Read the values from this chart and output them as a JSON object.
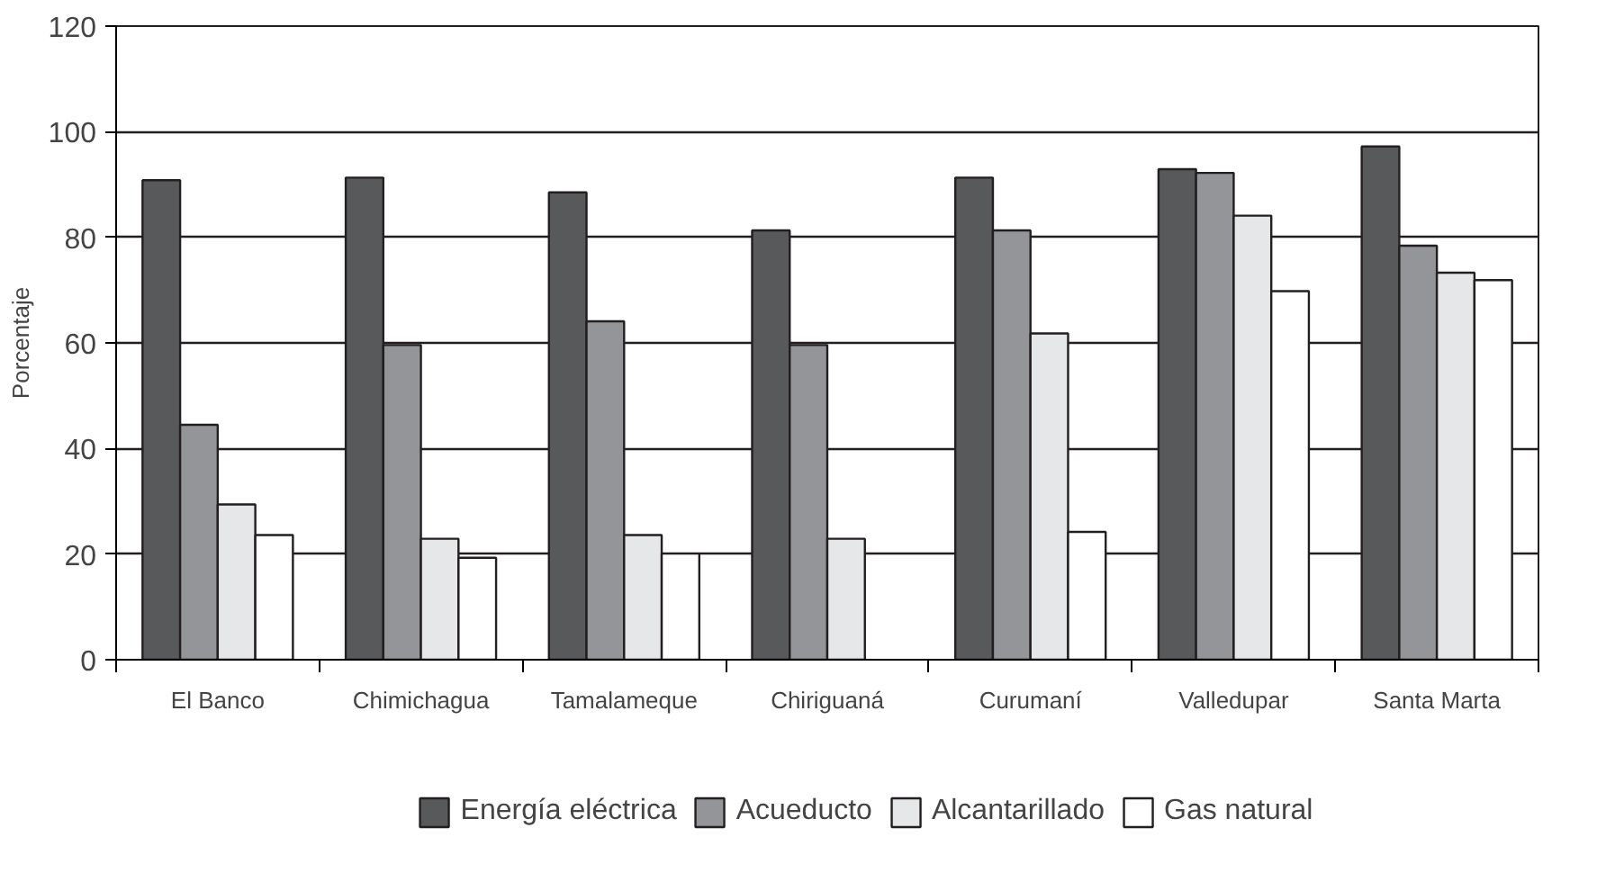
{
  "chart_data": {
    "type": "bar",
    "ylabel": "Porcentaje",
    "categories": [
      "El Banco",
      "Chimichagua",
      "Tamalameque",
      "Chiriguaná",
      "Curumaní",
      "Valledupar",
      "Santa Marta"
    ],
    "series": [
      {
        "name": "Energía eléctrica",
        "color": "#58595b",
        "values": [
          90.8,
          91.3,
          88.5,
          81.3,
          91.3,
          92.9,
          97.2
        ]
      },
      {
        "name": "Acueducto",
        "color": "#939598",
        "values": [
          44.5,
          59.6,
          64.1,
          59.6,
          81.3,
          92.2,
          78.4
        ]
      },
      {
        "name": "Alcantarillado",
        "color": "#e6e7e8",
        "values": [
          29.4,
          22.9,
          23.6,
          22.9,
          61.8,
          84.1,
          73.3
        ]
      },
      {
        "name": "Gas natural",
        "color": "#ffffff",
        "values": [
          23.6,
          19.3,
          20.1,
          null,
          24.2,
          69.8,
          71.9
        ]
      }
    ],
    "ylim": [
      0,
      120
    ],
    "yticks": [
      0,
      20,
      40,
      60,
      80,
      100,
      120
    ],
    "grid": "y",
    "legend": "bottom"
  }
}
